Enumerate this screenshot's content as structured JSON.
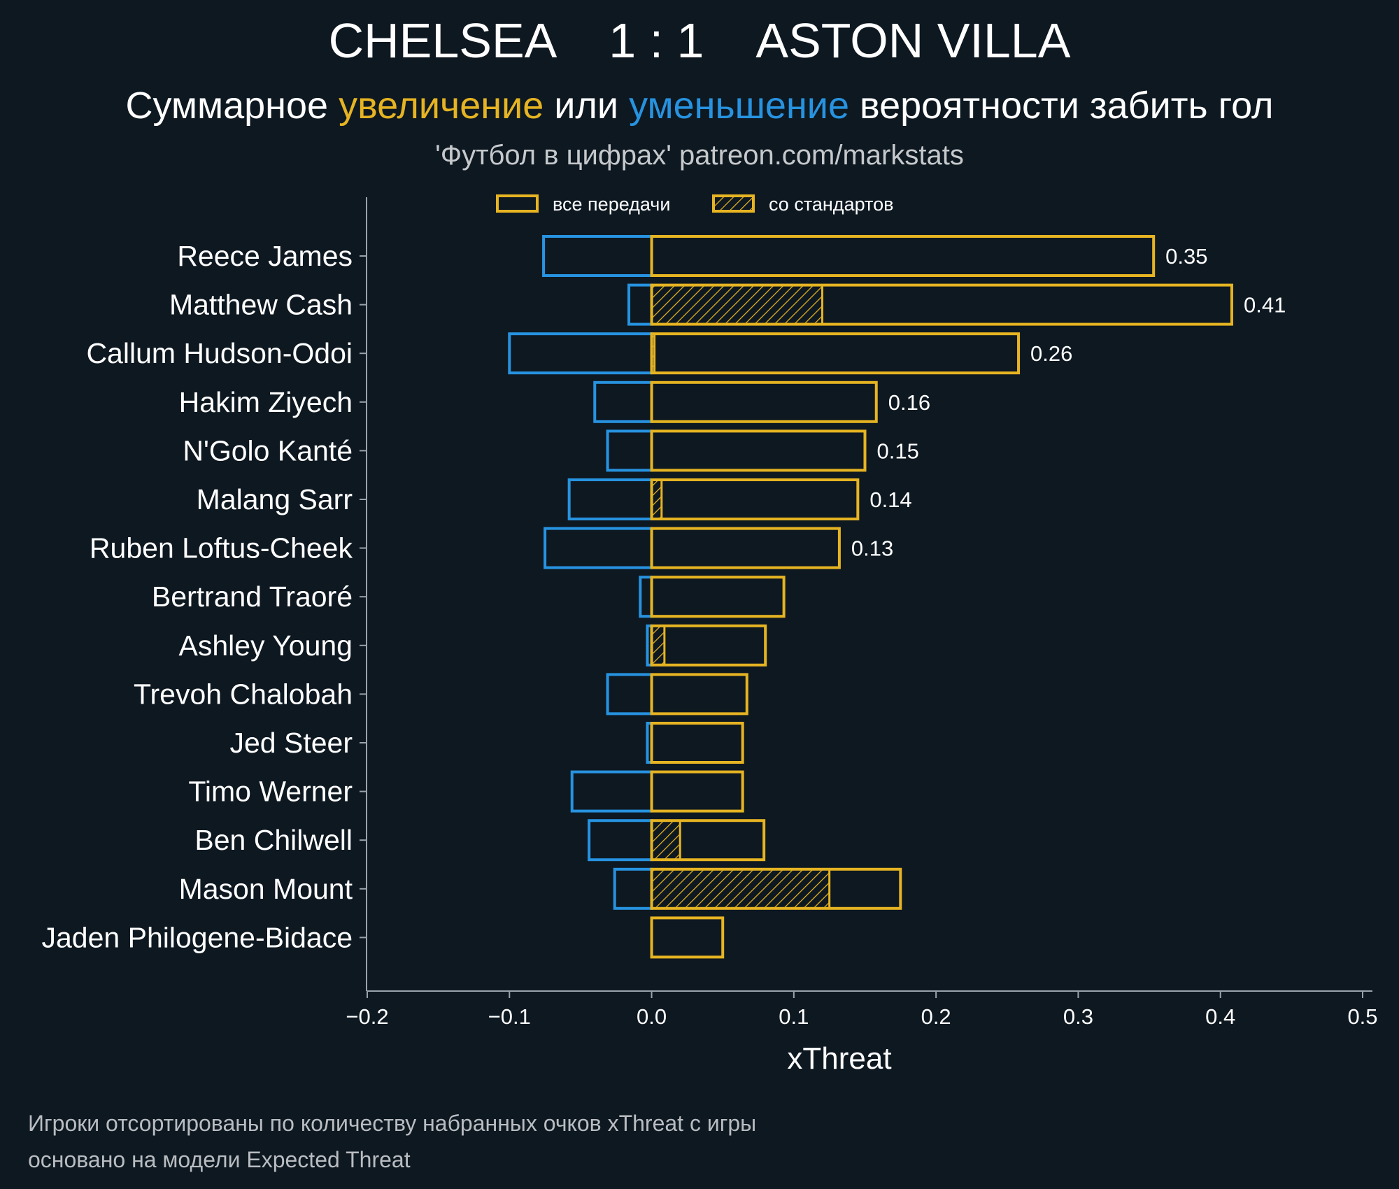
{
  "header": {
    "title": "CHELSEA    1 : 1    ASTON VILLA",
    "subtitle_part1": "Суммарное ",
    "subtitle_increase": "увеличение",
    "subtitle_part2": " или ",
    "subtitle_decrease": "уменьшение",
    "subtitle_part3": " вероятности забить гол",
    "credit": "'Футбол в цифрах' patreon.com/markstats"
  },
  "footer": {
    "note1": "Игроки отсортированы по количеству набранных очков xThreat с игры",
    "note2": "основано на модели Expected Threat"
  },
  "colors": {
    "background": "#0e1821",
    "increase": "#e6b422",
    "decrease": "#2793e0",
    "axis": "#9aa3ab",
    "text": "#ffffff"
  },
  "chart_data": {
    "type": "bar",
    "orientation": "horizontal",
    "xlabel": "xThreat",
    "xlim": [
      -0.2,
      0.5
    ],
    "xticks": [
      -0.2,
      -0.1,
      0.0,
      0.1,
      0.2,
      0.3,
      0.4,
      0.5
    ],
    "xtick_labels": [
      "−0.2",
      "−0.1",
      "0.0",
      "0.1",
      "0.2",
      "0.3",
      "0.4",
      "0.5"
    ],
    "legend": {
      "position": "top",
      "items": [
        {
          "label": "все передачи",
          "style": "outline"
        },
        {
          "label": "со стандартов",
          "style": "hatched"
        }
      ]
    },
    "categories": [
      "Reece James",
      "Matthew Cash",
      "Callum Hudson-Odoi",
      "Hakim Ziyech",
      "N'Golo Kanté",
      "Malang Sarr",
      "Ruben Loftus-Cheek",
      "Bertrand Traoré",
      "Ashley Young",
      "Trevoh Chalobah",
      "Jed Steer",
      "Timo Werner",
      "Ben Chilwell",
      "Mason Mount",
      "Jaden Philogene-Bidace"
    ],
    "series": [
      {
        "name": "все передачи",
        "values": [
          0.353,
          0.408,
          0.258,
          0.158,
          0.15,
          0.145,
          0.132,
          0.093,
          0.08,
          0.067,
          0.064,
          0.064,
          0.079,
          0.175,
          0.05
        ]
      },
      {
        "values": [
          -0.076,
          -0.016,
          -0.1,
          -0.04,
          -0.031,
          -0.058,
          -0.075,
          -0.008,
          -0.003,
          -0.031,
          -0.003,
          -0.056,
          -0.044,
          -0.026,
          0.0
        ]
      },
      {
        "name": "со стандартов",
        "values": [
          0.0,
          0.12,
          0.002,
          0.0,
          0.0,
          0.007,
          0.0,
          0.0,
          0.009,
          0.0,
          0.0,
          0.0,
          0.02,
          0.125,
          0.0
        ]
      }
    ],
    "data_labels": [
      "0.35",
      "0.41",
      "0.26",
      "0.16",
      "0.15",
      "0.14",
      "0.13",
      "",
      "",
      "",
      "",
      "",
      "",
      "",
      ""
    ]
  }
}
